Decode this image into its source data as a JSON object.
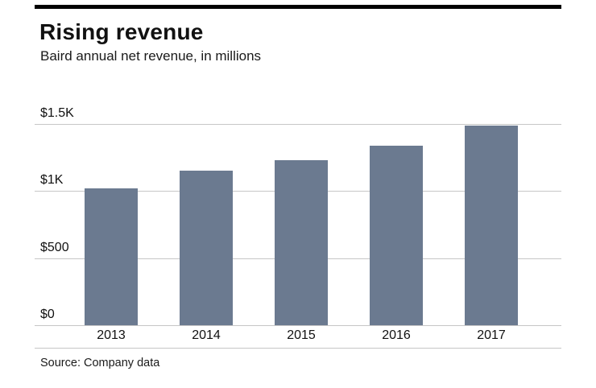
{
  "header": {
    "title": "Rising revenue",
    "subtitle": "Baird annual net revenue, in millions"
  },
  "footer": {
    "source": "Source: Company data"
  },
  "colors": {
    "bar": "#6b7a90",
    "gridline": "#c6c6c6",
    "top_rule": "#000000",
    "text": "#111111"
  },
  "chart_data": {
    "type": "bar",
    "title": "Rising revenue",
    "subtitle": "Baird annual net revenue, in millions",
    "source": "Source: Company data",
    "categories": [
      "2013",
      "2014",
      "2015",
      "2016",
      "2017"
    ],
    "values": [
      1020,
      1150,
      1230,
      1340,
      1490
    ],
    "xlabel": "",
    "ylabel": "",
    "ylim": [
      0,
      1500
    ],
    "yticks": [
      {
        "value": 0,
        "label": "$0"
      },
      {
        "value": 500,
        "label": "$500"
      },
      {
        "value": 1000,
        "label": "$1K"
      },
      {
        "value": 1500,
        "label": "$1.5K"
      }
    ],
    "grid": true,
    "legend": false,
    "bar_color": "#6b7a90"
  }
}
